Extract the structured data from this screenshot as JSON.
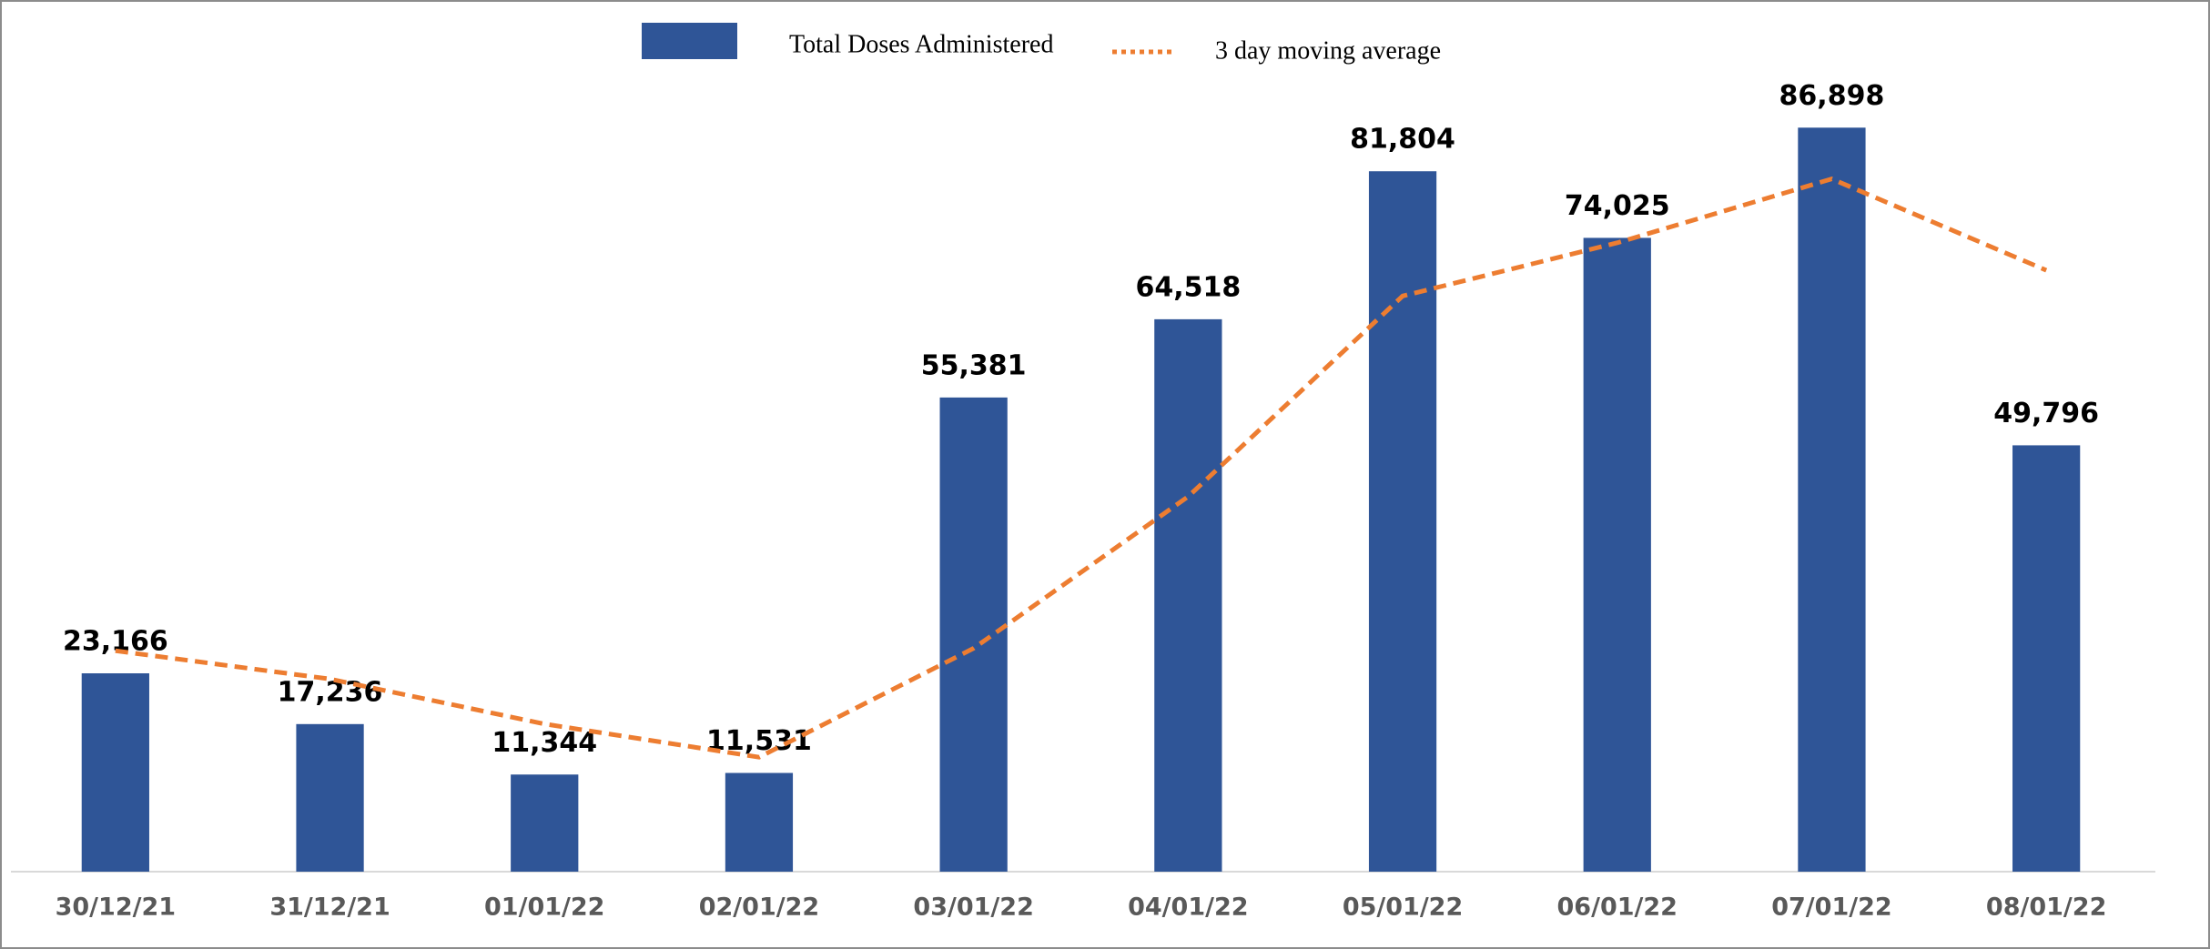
{
  "chart_data": {
    "type": "bar",
    "categories": [
      "30/12/21",
      "31/12/21",
      "01/01/22",
      "02/01/22",
      "03/01/22",
      "04/01/22",
      "05/01/22",
      "06/01/22",
      "07/01/22",
      "08/01/22"
    ],
    "series": [
      {
        "name": "Total Doses Administered",
        "type": "bar",
        "color": "#2f5597",
        "values": [
          23166,
          17236,
          11344,
          11531,
          55381,
          64518,
          81804,
          74025,
          86898,
          49796
        ],
        "value_labels": [
          "23,166",
          "17,236",
          "11,344",
          "11,531",
          "55,381",
          "64,518",
          "81,804",
          "74,025",
          "86,898",
          "49,796"
        ]
      },
      {
        "name": "3 day moving average",
        "type": "line",
        "color": "#ed7d31",
        "values": [
          25800,
          22500,
          17249,
          13370,
          26085,
          43810,
          67234,
          73449,
          80909,
          70240
        ]
      }
    ],
    "ylim": [
      0,
      100000
    ],
    "legend": "top"
  }
}
